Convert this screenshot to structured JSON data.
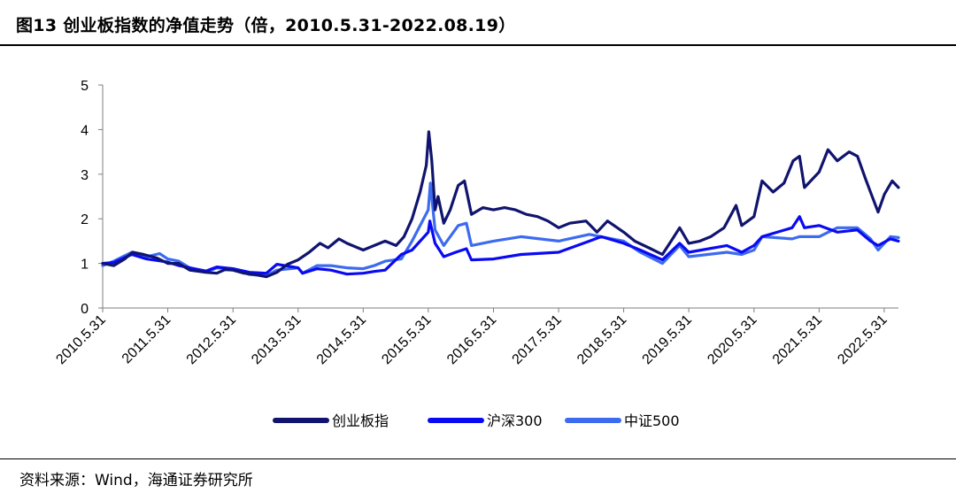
{
  "title": "图13 创业板指数的净值走势（倍，2010.5.31-2022.08.19）",
  "source": "资料来源：Wind，海通证券研究所",
  "chart_data": {
    "type": "line",
    "ylim": [
      0,
      5
    ],
    "yticks": [
      0,
      1,
      2,
      3,
      4,
      5
    ],
    "x_range": [
      "2010.5.31",
      "2022.8.19"
    ],
    "xticks": [
      "2010.5.31",
      "2011.5.31",
      "2012.5.31",
      "2013.5.31",
      "2014.5.31",
      "2015.5.31",
      "2016.5.31",
      "2017.5.31",
      "2018.5.31",
      "2019.5.31",
      "2020.5.31",
      "2021.5.31",
      "2022.5.31"
    ],
    "grid": false,
    "legend_position": "bottom",
    "series": [
      {
        "name": "创业板指",
        "color": "#10146E",
        "points": [
          [
            "2010.5.31",
            1.0
          ],
          [
            "2010.8.1",
            0.95
          ],
          [
            "2010.10.1",
            1.1
          ],
          [
            "2010.11.15",
            1.25
          ],
          [
            "2011.1.15",
            1.2
          ],
          [
            "2011.4.1",
            1.12
          ],
          [
            "2011.5.31",
            1.0
          ],
          [
            "2011.8.1",
            1.0
          ],
          [
            "2011.10.1",
            0.85
          ],
          [
            "2011.12.31",
            0.8
          ],
          [
            "2012.3.1",
            0.78
          ],
          [
            "2012.4.15",
            0.86
          ],
          [
            "2012.5.31",
            0.85
          ],
          [
            "2012.8.1",
            0.78
          ],
          [
            "2012.10.1",
            0.75
          ],
          [
            "2012.12.4",
            0.7
          ],
          [
            "2013.2.1",
            0.8
          ],
          [
            "2013.4.1",
            0.98
          ],
          [
            "2013.5.31",
            1.08
          ],
          [
            "2013.8.1",
            1.25
          ],
          [
            "2013.10.1",
            1.45
          ],
          [
            "2013.11.15",
            1.35
          ],
          [
            "2014.1.15",
            1.55
          ],
          [
            "2014.3.1",
            1.45
          ],
          [
            "2014.5.31",
            1.3
          ],
          [
            "2014.8.1",
            1.4
          ],
          [
            "2014.10.1",
            1.5
          ],
          [
            "2014.12.1",
            1.4
          ],
          [
            "2015.1.15",
            1.6
          ],
          [
            "2015.3.1",
            2.0
          ],
          [
            "2015.4.15",
            2.6
          ],
          [
            "2015.5.20",
            3.2
          ],
          [
            "2015.6.3",
            3.95
          ],
          [
            "2015.6.20",
            3.3
          ],
          [
            "2015.7.8",
            2.2
          ],
          [
            "2015.7.25",
            2.5
          ],
          [
            "2015.8.26",
            1.9
          ],
          [
            "2015.10.1",
            2.2
          ],
          [
            "2015.11.15",
            2.75
          ],
          [
            "2015.12.20",
            2.85
          ],
          [
            "2016.1.28",
            2.1
          ],
          [
            "2016.4.1",
            2.25
          ],
          [
            "2016.5.31",
            2.2
          ],
          [
            "2016.8.1",
            2.25
          ],
          [
            "2016.10.1",
            2.2
          ],
          [
            "2016.12.1",
            2.1
          ],
          [
            "2017.2.1",
            2.05
          ],
          [
            "2017.4.1",
            1.95
          ],
          [
            "2017.5.31",
            1.8
          ],
          [
            "2017.8.1",
            1.9
          ],
          [
            "2017.11.1",
            1.95
          ],
          [
            "2018.1.1",
            1.7
          ],
          [
            "2018.3.1",
            1.95
          ],
          [
            "2018.5.31",
            1.7
          ],
          [
            "2018.8.1",
            1.5
          ],
          [
            "2018.10.19",
            1.35
          ],
          [
            "2019.1.3",
            1.2
          ],
          [
            "2019.3.1",
            1.55
          ],
          [
            "2019.4.10",
            1.8
          ],
          [
            "2019.5.31",
            1.45
          ],
          [
            "2019.8.1",
            1.5
          ],
          [
            "2019.10.1",
            1.6
          ],
          [
            "2019.12.15",
            1.8
          ],
          [
            "2020.2.20",
            2.3
          ],
          [
            "2020.3.23",
            1.85
          ],
          [
            "2020.5.31",
            2.05
          ],
          [
            "2020.7.15",
            2.85
          ],
          [
            "2020.9.15",
            2.6
          ],
          [
            "2020.11.15",
            2.8
          ],
          [
            "2021.1.5",
            3.3
          ],
          [
            "2021.2.10",
            3.4
          ],
          [
            "2021.3.10",
            2.7
          ],
          [
            "2021.5.31",
            3.05
          ],
          [
            "2021.7.20",
            3.55
          ],
          [
            "2021.9.10",
            3.3
          ],
          [
            "2021.11.15",
            3.5
          ],
          [
            "2022.1.1",
            3.4
          ],
          [
            "2022.2.15",
            2.9
          ],
          [
            "2022.3.15",
            2.6
          ],
          [
            "2022.4.27",
            2.15
          ],
          [
            "2022.6.1",
            2.55
          ],
          [
            "2022.7.15",
            2.85
          ],
          [
            "2022.8.19",
            2.7
          ]
        ]
      },
      {
        "name": "沪深300",
        "color": "#0A0AF2",
        "points": [
          [
            "2010.5.31",
            1.0
          ],
          [
            "2010.8.1",
            1.02
          ],
          [
            "2010.11.10",
            1.2
          ],
          [
            "2011.2.1",
            1.1
          ],
          [
            "2011.5.31",
            1.03
          ],
          [
            "2011.8.1",
            0.95
          ],
          [
            "2011.10.1",
            0.9
          ],
          [
            "2011.12.31",
            0.83
          ],
          [
            "2012.3.1",
            0.92
          ],
          [
            "2012.5.31",
            0.88
          ],
          [
            "2012.9.1",
            0.8
          ],
          [
            "2012.12.4",
            0.78
          ],
          [
            "2013.2.1",
            0.98
          ],
          [
            "2013.5.31",
            0.9
          ],
          [
            "2013.6.25",
            0.78
          ],
          [
            "2013.9.15",
            0.88
          ],
          [
            "2013.12.1",
            0.85
          ],
          [
            "2014.3.1",
            0.76
          ],
          [
            "2014.5.31",
            0.78
          ],
          [
            "2014.8.1",
            0.82
          ],
          [
            "2014.10.1",
            0.85
          ],
          [
            "2014.12.31",
            1.2
          ],
          [
            "2015.3.1",
            1.3
          ],
          [
            "2015.5.31",
            1.7
          ],
          [
            "2015.6.9",
            1.95
          ],
          [
            "2015.7.8",
            1.45
          ],
          [
            "2015.8.26",
            1.15
          ],
          [
            "2015.11.1",
            1.25
          ],
          [
            "2015.12.31",
            1.33
          ],
          [
            "2016.1.28",
            1.08
          ],
          [
            "2016.5.31",
            1.1
          ],
          [
            "2016.11.1",
            1.2
          ],
          [
            "2017.5.31",
            1.25
          ],
          [
            "2017.11.20",
            1.5
          ],
          [
            "2018.1.25",
            1.6
          ],
          [
            "2018.5.31",
            1.45
          ],
          [
            "2018.9.1",
            1.3
          ],
          [
            "2019.1.3",
            1.08
          ],
          [
            "2019.4.10",
            1.45
          ],
          [
            "2019.5.31",
            1.25
          ],
          [
            "2019.12.31",
            1.4
          ],
          [
            "2020.3.23",
            1.25
          ],
          [
            "2020.5.31",
            1.4
          ],
          [
            "2020.7.15",
            1.6
          ],
          [
            "2020.12.31",
            1.8
          ],
          [
            "2021.2.10",
            2.05
          ],
          [
            "2021.3.10",
            1.8
          ],
          [
            "2021.5.31",
            1.85
          ],
          [
            "2021.9.10",
            1.7
          ],
          [
            "2021.12.31",
            1.75
          ],
          [
            "2022.3.15",
            1.5
          ],
          [
            "2022.4.27",
            1.4
          ],
          [
            "2022.7.5",
            1.55
          ],
          [
            "2022.8.19",
            1.5
          ]
        ]
      },
      {
        "name": "中证500",
        "color": "#3D6BF0",
        "points": [
          [
            "2010.5.31",
            0.95
          ],
          [
            "2010.8.1",
            1.05
          ],
          [
            "2010.11.10",
            1.25
          ],
          [
            "2011.2.1",
            1.15
          ],
          [
            "2011.4.15",
            1.22
          ],
          [
            "2011.5.31",
            1.1
          ],
          [
            "2011.8.1",
            1.05
          ],
          [
            "2011.10.1",
            0.9
          ],
          [
            "2011.12.31",
            0.8
          ],
          [
            "2012.3.1",
            0.9
          ],
          [
            "2012.5.31",
            0.88
          ],
          [
            "2012.9.1",
            0.75
          ],
          [
            "2012.12.4",
            0.72
          ],
          [
            "2013.2.1",
            0.85
          ],
          [
            "2013.5.31",
            0.9
          ],
          [
            "2013.6.25",
            0.78
          ],
          [
            "2013.9.15",
            0.95
          ],
          [
            "2013.12.1",
            0.95
          ],
          [
            "2014.3.1",
            0.9
          ],
          [
            "2014.5.31",
            0.88
          ],
          [
            "2014.8.1",
            0.95
          ],
          [
            "2014.10.1",
            1.05
          ],
          [
            "2014.12.31",
            1.1
          ],
          [
            "2015.3.1",
            1.5
          ],
          [
            "2015.5.31",
            2.2
          ],
          [
            "2015.6.12",
            2.8
          ],
          [
            "2015.7.8",
            1.75
          ],
          [
            "2015.8.26",
            1.4
          ],
          [
            "2015.11.15",
            1.85
          ],
          [
            "2015.12.31",
            1.9
          ],
          [
            "2016.1.28",
            1.4
          ],
          [
            "2016.5.31",
            1.5
          ],
          [
            "2016.11.1",
            1.6
          ],
          [
            "2017.5.31",
            1.5
          ],
          [
            "2017.11.20",
            1.65
          ],
          [
            "2018.1.25",
            1.6
          ],
          [
            "2018.5.31",
            1.5
          ],
          [
            "2018.9.1",
            1.25
          ],
          [
            "2019.1.3",
            1.0
          ],
          [
            "2019.4.10",
            1.4
          ],
          [
            "2019.5.31",
            1.15
          ],
          [
            "2019.12.31",
            1.25
          ],
          [
            "2020.3.23",
            1.2
          ],
          [
            "2020.5.31",
            1.3
          ],
          [
            "2020.7.15",
            1.6
          ],
          [
            "2020.12.31",
            1.55
          ],
          [
            "2021.2.10",
            1.6
          ],
          [
            "2021.5.31",
            1.6
          ],
          [
            "2021.9.10",
            1.8
          ],
          [
            "2021.12.31",
            1.8
          ],
          [
            "2022.3.15",
            1.55
          ],
          [
            "2022.4.27",
            1.3
          ],
          [
            "2022.7.5",
            1.6
          ],
          [
            "2022.8.19",
            1.58
          ]
        ]
      }
    ]
  }
}
